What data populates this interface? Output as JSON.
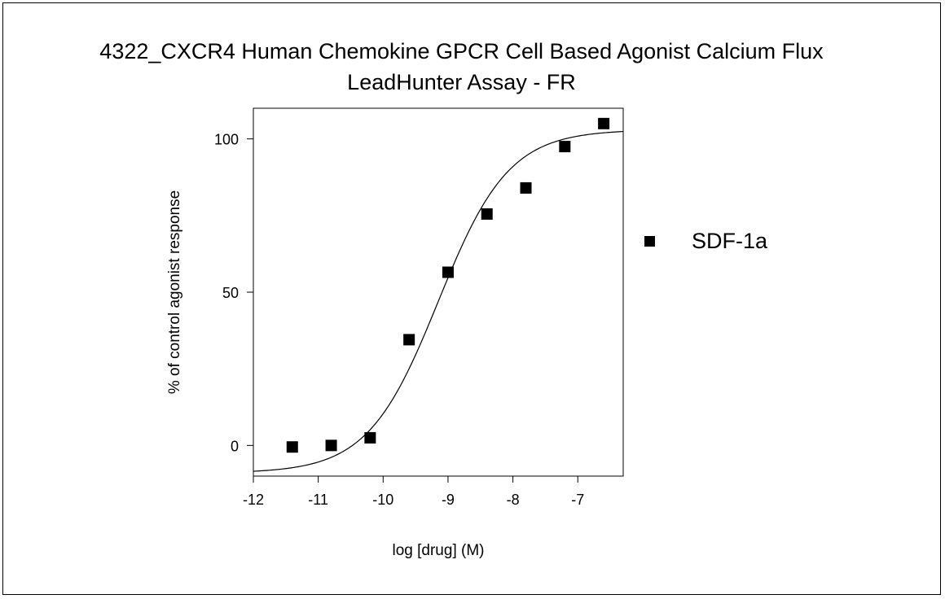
{
  "chart_data": {
    "type": "scatter",
    "title": "4322_CXCR4 Human Chemokine GPCR Cell Based Agonist Calcium Flux",
    "subtitle": "LeadHunter Assay - FR",
    "xlabel": "log [drug] (M)",
    "ylabel": "% of control agonist response",
    "xlim": [
      -12,
      -6.3
    ],
    "ylim": [
      -10,
      110
    ],
    "xticks": [
      -12,
      -11,
      -10,
      -9,
      -8,
      -7
    ],
    "xtick_labels": [
      "-12",
      "-11",
      "-10",
      "-9",
      "-8",
      "-7"
    ],
    "yticks": [
      0,
      50,
      100
    ],
    "ytick_labels": [
      "0",
      "50",
      "100"
    ],
    "grid": false,
    "legend_position": "right",
    "series": [
      {
        "name": "SDF-1a",
        "marker": "square",
        "color": "#000000",
        "x": [
          -11.4,
          -10.8,
          -10.2,
          -9.6,
          -9.0,
          -8.4,
          -7.8,
          -7.2,
          -6.6
        ],
        "y": [
          -0.5,
          0,
          2.5,
          34.5,
          56.5,
          75.5,
          84,
          97.5,
          105
        ],
        "fit": {
          "model": "four-parameter-logistic",
          "bottom": -9,
          "top": 103,
          "log_ec50": -9.15,
          "hill_slope": 0.8
        }
      }
    ]
  }
}
